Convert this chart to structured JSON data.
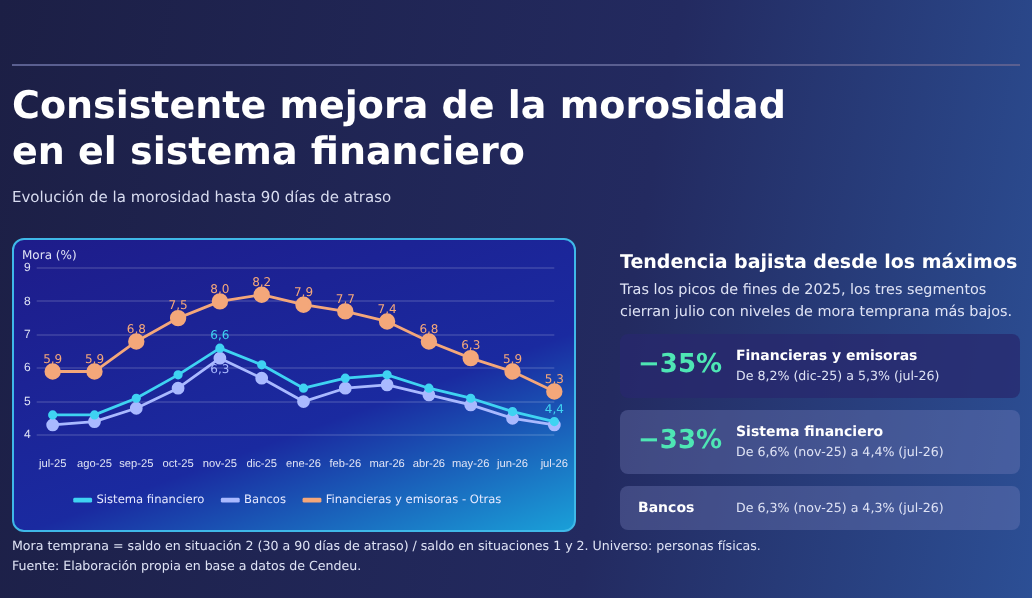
{
  "chart_data": {
    "type": "line",
    "title": "Consistente mejora de la morosidad en el sistema financiero",
    "subtitle": "Evolución de la morosidad hasta 90 días de atraso",
    "ylabel": "Mora (%)",
    "categories": [
      "jul-25",
      "ago-25",
      "sep-25",
      "oct-25",
      "nov-25",
      "dic-25",
      "ene-26",
      "feb-26",
      "mar-26",
      "abr-26",
      "may-26",
      "jun-26",
      "jul-26"
    ],
    "series": [
      {
        "name": "Sistema financiero",
        "color": "#3fd3f2",
        "values": [
          4.6,
          4.6,
          5.1,
          5.8,
          6.6,
          6.1,
          5.4,
          5.7,
          5.8,
          5.4,
          5.1,
          4.7,
          4.4
        ],
        "value_labels": [
          null,
          null,
          null,
          null,
          "6,6",
          null,
          null,
          null,
          null,
          null,
          null,
          null,
          "4,4"
        ]
      },
      {
        "name": "Bancos",
        "color": "#a9b9ff",
        "values": [
          4.3,
          4.4,
          4.8,
          5.4,
          6.3,
          5.7,
          5.0,
          5.4,
          5.5,
          5.2,
          4.9,
          4.5,
          4.3
        ],
        "value_labels": [
          null,
          null,
          null,
          null,
          "6,3",
          null,
          null,
          null,
          null,
          null,
          null,
          null,
          null
        ]
      },
      {
        "name": "Financieras y emisoras - Otras",
        "color": "#f4a77a",
        "values": [
          5.9,
          5.9,
          6.8,
          7.5,
          8.0,
          8.2,
          7.9,
          7.7,
          7.4,
          6.8,
          6.3,
          5.9,
          5.3
        ],
        "value_labels": [
          "5,9",
          "5,9",
          "6,8",
          "7,5",
          "8,0",
          "8,2",
          "7,9",
          "7,7",
          "7,4",
          "6,8",
          "6,3",
          "5,9",
          "5,3"
        ]
      }
    ],
    "ylim": [
      4,
      9
    ],
    "yticks": [
      4,
      5,
      6,
      7,
      8,
      9
    ],
    "grid": "y",
    "legend": "bottom",
    "marker": "circle",
    "line_style": "solid",
    "annotations": [
      "Tendencia bajista desde los máximos",
      "Tras los picos de fines de 2025, los tres segmentos cierran julio con niveles de mora temprana más bajos.",
      "−35%",
      "Financieras y emisoras",
      "De 8,2% (dic-25) a 5,3% (jul-26)",
      "−33%",
      "Sistema financiero",
      "De 6,6% (nov-25) a 4,4% (jul-26)",
      "Bancos",
      "De 6,3% (nov-25) a 4,3% (jul-26)",
      "Mora temprana = saldo en situación 2 (30 a 90 días de atraso) / saldo en situaciones 1 y 2. Universo: personas físicas.",
      "Fuente: Elaboración propia en base a datos de Cendeu."
    ]
  }
}
